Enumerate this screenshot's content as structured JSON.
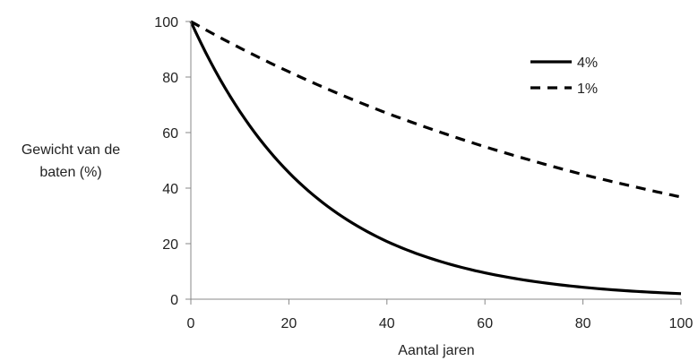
{
  "chart_data": {
    "type": "line",
    "title": "",
    "xlabel": "Aantal jaren",
    "ylabel_lines": [
      "Gewicht van de",
      "baten (%)"
    ],
    "xlim": [
      0,
      100
    ],
    "ylim": [
      0,
      100
    ],
    "xticks": [
      0,
      20,
      40,
      60,
      80,
      100
    ],
    "yticks": [
      0,
      20,
      40,
      60,
      80,
      100
    ],
    "grid": false,
    "legend_position": "top-right",
    "x": [
      0,
      10,
      20,
      30,
      40,
      50,
      60,
      70,
      80,
      90,
      100
    ],
    "series": [
      {
        "name": "4%",
        "line_style": "solid",
        "color": "#000000",
        "values": [
          100,
          67.6,
          45.6,
          30.8,
          20.8,
          14.1,
          9.5,
          6.4,
          4.3,
          2.9,
          2.0
        ]
      },
      {
        "name": "1%",
        "line_style": "dashed",
        "color": "#000000",
        "values": [
          100,
          90.5,
          81.9,
          74.1,
          67.0,
          60.7,
          54.9,
          49.7,
          44.9,
          40.7,
          36.8
        ]
      }
    ]
  }
}
